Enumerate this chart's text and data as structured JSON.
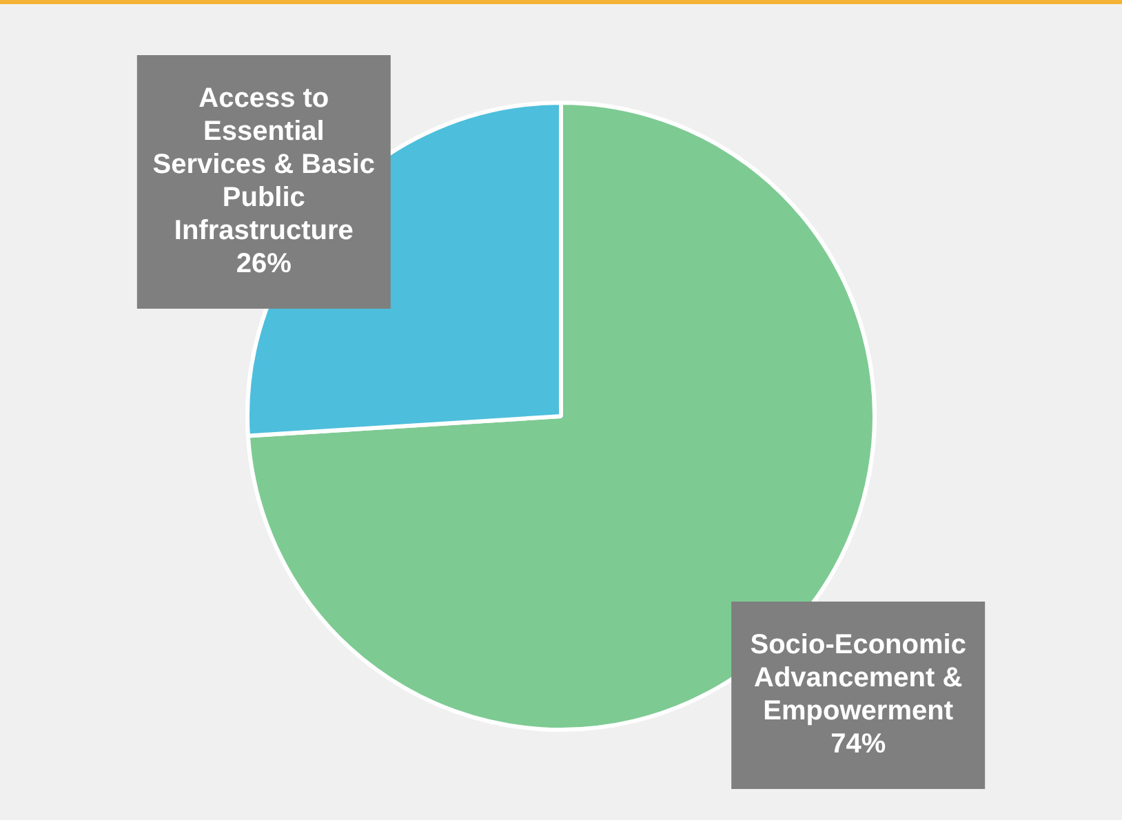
{
  "chart_data": {
    "type": "pie",
    "categories": [
      "Socio-Economic Advancement & Empowerment",
      "Access to Essential Services & Basic Public Infrastructure"
    ],
    "values": [
      74,
      26
    ],
    "colors": [
      "#7dcb93",
      "#4dbfdc"
    ],
    "value_labels": [
      "74%",
      "26%"
    ]
  }
}
